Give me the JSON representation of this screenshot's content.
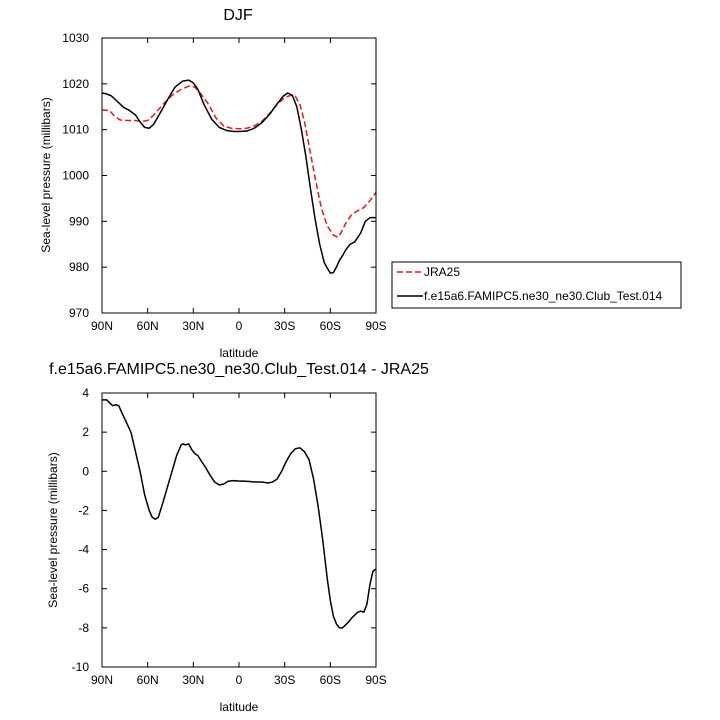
{
  "chart_data": [
    {
      "type": "line",
      "title": "DJF",
      "xlabel": "latitude",
      "ylabel": "Sea-level pressure (millibars)",
      "xlim": [
        90,
        -90
      ],
      "ylim": [
        970,
        1030
      ],
      "x_tick_values": [
        90,
        60,
        30,
        0,
        -30,
        -60,
        -90
      ],
      "x_tick_labels": [
        "90N",
        "60N",
        "30N",
        "0",
        "30S",
        "60S",
        "90S"
      ],
      "y_tick_values": [
        970,
        980,
        990,
        1000,
        1010,
        1020,
        1030
      ],
      "y_tick_labels": [
        "970",
        "980",
        "990",
        "1000",
        "1010",
        "1020",
        "1030"
      ],
      "legend_position": "right",
      "series": [
        {
          "name": "JRA25",
          "color": "#e8191b",
          "dash": "dashed",
          "x": [
            90,
            85,
            82,
            78,
            73,
            68,
            64,
            60,
            56,
            50,
            44,
            38,
            33,
            29,
            25,
            20,
            15,
            10,
            5,
            0,
            -5,
            -10,
            -15,
            -20,
            -25,
            -30,
            -34,
            -37,
            -40,
            -43,
            -46,
            -50,
            -54,
            -58,
            -62,
            -65,
            -67,
            -70,
            -74,
            -78,
            -82,
            -86,
            -90
          ],
          "y": [
            1014.3,
            1014.2,
            1013.0,
            1012.1,
            1012.0,
            1012.0,
            1011.8,
            1012.0,
            1013.2,
            1015.5,
            1017.5,
            1018.8,
            1019.5,
            1019.3,
            1017.8,
            1015.5,
            1012.5,
            1010.8,
            1010.3,
            1010.2,
            1010.3,
            1010.8,
            1011.8,
            1013.5,
            1015.5,
            1017.0,
            1017.5,
            1017.3,
            1015.5,
            1011.8,
            1006.5,
            999.5,
            993.0,
            989.0,
            987.0,
            986.5,
            987.5,
            989.5,
            991.5,
            992.3,
            993.0,
            994.5,
            996.3
          ]
        },
        {
          "name": "f.e15a6.FAMIPC5.ne30_ne30.Club_Test.014",
          "color": "#000000",
          "dash": "solid",
          "x": [
            90,
            87,
            84,
            80,
            76,
            72,
            68,
            65,
            62,
            59,
            56,
            52,
            47,
            42,
            37,
            33,
            30,
            27,
            23,
            18,
            13,
            8,
            3,
            0,
            -5,
            -10,
            -15,
            -20,
            -25,
            -29,
            -32,
            -35,
            -38,
            -41,
            -44,
            -47,
            -50,
            -53,
            -56,
            -58,
            -60,
            -62,
            -64,
            -66,
            -68,
            -70,
            -73,
            -76,
            -80,
            -83,
            -86,
            -88,
            -90
          ],
          "y": [
            1018.0,
            1017.8,
            1017.4,
            1016.2,
            1014.9,
            1014.2,
            1013.2,
            1011.7,
            1010.5,
            1010.3,
            1011.2,
            1013.5,
            1016.5,
            1019.3,
            1020.6,
            1020.8,
            1020.2,
            1018.8,
            1015.5,
            1012.3,
            1010.5,
            1009.8,
            1009.6,
            1009.6,
            1009.7,
            1010.3,
            1011.5,
            1013.3,
            1015.6,
            1017.3,
            1018.0,
            1017.5,
            1015.0,
            1010.0,
            1004.0,
            997.0,
            990.5,
            985.0,
            981.0,
            979.8,
            978.7,
            978.8,
            980.0,
            981.5,
            982.5,
            983.7,
            985.0,
            985.5,
            987.5,
            990.0,
            990.8,
            990.8,
            990.8
          ]
        }
      ]
    },
    {
      "type": "line",
      "title": "f.e15a6.FAMIPC5.ne30_ne30.Club_Test.014 - JRA25",
      "xlabel": "latitude",
      "ylabel": "Sea-level pressure (millibars)",
      "xlim": [
        90,
        -90
      ],
      "ylim": [
        -10,
        4
      ],
      "x_tick_values": [
        90,
        60,
        30,
        0,
        -30,
        -60,
        -90
      ],
      "x_tick_labels": [
        "90N",
        "60N",
        "30N",
        "0",
        "30S",
        "60S",
        "90S"
      ],
      "y_tick_values": [
        -10,
        -8,
        -6,
        -4,
        -2,
        0,
        2,
        4
      ],
      "y_tick_labels": [
        "-10",
        "-8",
        "-6",
        "-4",
        "-2",
        "0",
        "2",
        "4"
      ],
      "series": [
        {
          "color": "#000000",
          "dash": "solid",
          "x": [
            90,
            87,
            85,
            83,
            81,
            79,
            77,
            74,
            71,
            68,
            65,
            62,
            59,
            57,
            55,
            53,
            50,
            47,
            44,
            41,
            38,
            37,
            35,
            33,
            31,
            29,
            27,
            25,
            22,
            19,
            16,
            13,
            10,
            7,
            3,
            0,
            -3,
            -7,
            -11,
            -15,
            -19,
            -22,
            -25,
            -28,
            -31,
            -34,
            -37,
            -40,
            -43,
            -46,
            -49,
            -52,
            -55,
            -58,
            -60,
            -62,
            -64,
            -66,
            -68,
            -70,
            -72,
            -74,
            -76,
            -78,
            -80,
            -82,
            -84,
            -86,
            -88,
            -90
          ],
          "y": [
            3.65,
            3.65,
            3.5,
            3.35,
            3.4,
            3.35,
            3.0,
            2.5,
            2.0,
            1.0,
            0.0,
            -1.2,
            -2.0,
            -2.35,
            -2.45,
            -2.35,
            -1.6,
            -0.8,
            0.0,
            0.8,
            1.35,
            1.4,
            1.35,
            1.4,
            1.1,
            0.9,
            0.8,
            0.55,
            0.2,
            -0.2,
            -0.55,
            -0.7,
            -0.65,
            -0.5,
            -0.48,
            -0.5,
            -0.5,
            -0.52,
            -0.55,
            -0.55,
            -0.6,
            -0.55,
            -0.4,
            0.0,
            0.5,
            0.9,
            1.15,
            1.2,
            1.0,
            0.6,
            -0.4,
            -1.8,
            -3.5,
            -5.5,
            -6.6,
            -7.4,
            -7.8,
            -8.0,
            -8.0,
            -7.85,
            -7.7,
            -7.5,
            -7.35,
            -7.2,
            -7.15,
            -7.2,
            -6.8,
            -5.8,
            -5.1,
            -5.0
          ]
        }
      ]
    }
  ]
}
